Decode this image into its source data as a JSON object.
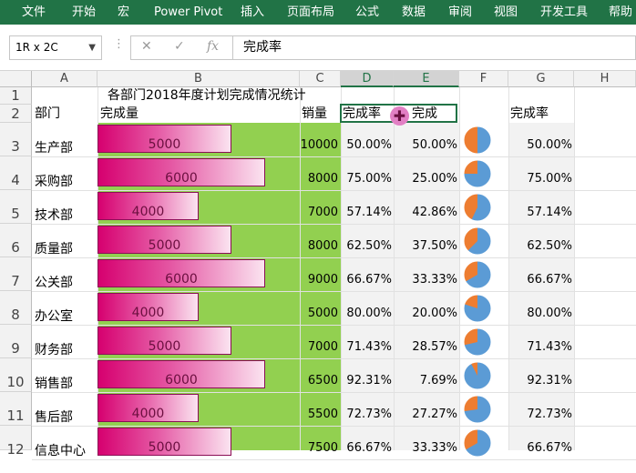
{
  "ribbon": {
    "tabs": [
      "文件",
      "开始",
      "宏",
      "Power Pivot",
      "插入",
      "页面布局",
      "公式",
      "数据",
      "审阅",
      "视图",
      "开发工具",
      "帮助"
    ]
  },
  "formula_bar": {
    "name_box": "1R x 2C",
    "name_box_arrow": "▼",
    "fx": "fx",
    "content": "完成率"
  },
  "columns": [
    "A",
    "B",
    "C",
    "D",
    "E",
    "F",
    "G",
    "H"
  ],
  "rows": [
    "1",
    "2",
    "3",
    "4",
    "5",
    "6",
    "7",
    "8",
    "9",
    "10",
    "11",
    "12"
  ],
  "sheet": {
    "title": "各部门2018年度计划完成情况统计",
    "headers": {
      "dept": "部门",
      "done": "完成量",
      "sales": "销量",
      "rate": "完成率",
      "undone": "完成",
      "rate_g": "完成率"
    },
    "records": [
      {
        "dept": "生产部",
        "done": "5000",
        "sales": "10000",
        "rate": "50.00%",
        "undone": "50.00%",
        "rate_g": "50.00%",
        "done_value": 5000,
        "pie_fraction": 0.5
      },
      {
        "dept": "采购部",
        "done": "6000",
        "sales": "8000",
        "rate": "75.00%",
        "undone": "25.00%",
        "rate_g": "75.00%",
        "done_value": 6000,
        "pie_fraction": 0.75
      },
      {
        "dept": "技术部",
        "done": "4000",
        "sales": "7000",
        "rate": "57.14%",
        "undone": "42.86%",
        "rate_g": "57.14%",
        "done_value": 4000,
        "pie_fraction": 0.5714
      },
      {
        "dept": "质量部",
        "done": "5000",
        "sales": "8000",
        "rate": "62.50%",
        "undone": "37.50%",
        "rate_g": "62.50%",
        "done_value": 5000,
        "pie_fraction": 0.625
      },
      {
        "dept": "公关部",
        "done": "6000",
        "sales": "9000",
        "rate": "66.67%",
        "undone": "33.33%",
        "rate_g": "66.67%",
        "done_value": 6000,
        "pie_fraction": 0.6667
      },
      {
        "dept": "办公室",
        "done": "4000",
        "sales": "5000",
        "rate": "80.00%",
        "undone": "20.00%",
        "rate_g": "80.00%",
        "done_value": 4000,
        "pie_fraction": 0.8
      },
      {
        "dept": "财务部",
        "done": "5000",
        "sales": "7000",
        "rate": "71.43%",
        "undone": "28.57%",
        "rate_g": "71.43%",
        "done_value": 5000,
        "pie_fraction": 0.7143
      },
      {
        "dept": "销售部",
        "done": "6000",
        "sales": "6500",
        "rate": "92.31%",
        "undone": "7.69%",
        "rate_g": "92.31%",
        "done_value": 6000,
        "pie_fraction": 0.9231
      },
      {
        "dept": "售后部",
        "done": "4000",
        "sales": "5500",
        "rate": "72.73%",
        "undone": "27.27%",
        "rate_g": "72.73%",
        "done_value": 4000,
        "pie_fraction": 0.7273
      },
      {
        "dept": "信息中心",
        "done": "5000",
        "sales": "7500",
        "rate": "66.67%",
        "undone": "33.33%",
        "rate_g": "66.67%",
        "done_value": 5000,
        "pie_fraction": 0.6667
      }
    ]
  },
  "colors": {
    "ribbon": "#217346",
    "bar_fill_start": "#d6006f",
    "bar_fill_end": "#fbe3f0",
    "cell_green": "#92d050",
    "pie_blue": "#5b9bd5",
    "pie_orange": "#ed7d31"
  },
  "icons": [
    "cancel-icon",
    "confirm-icon",
    "function-icon",
    "cell-cursor-icon"
  ]
}
